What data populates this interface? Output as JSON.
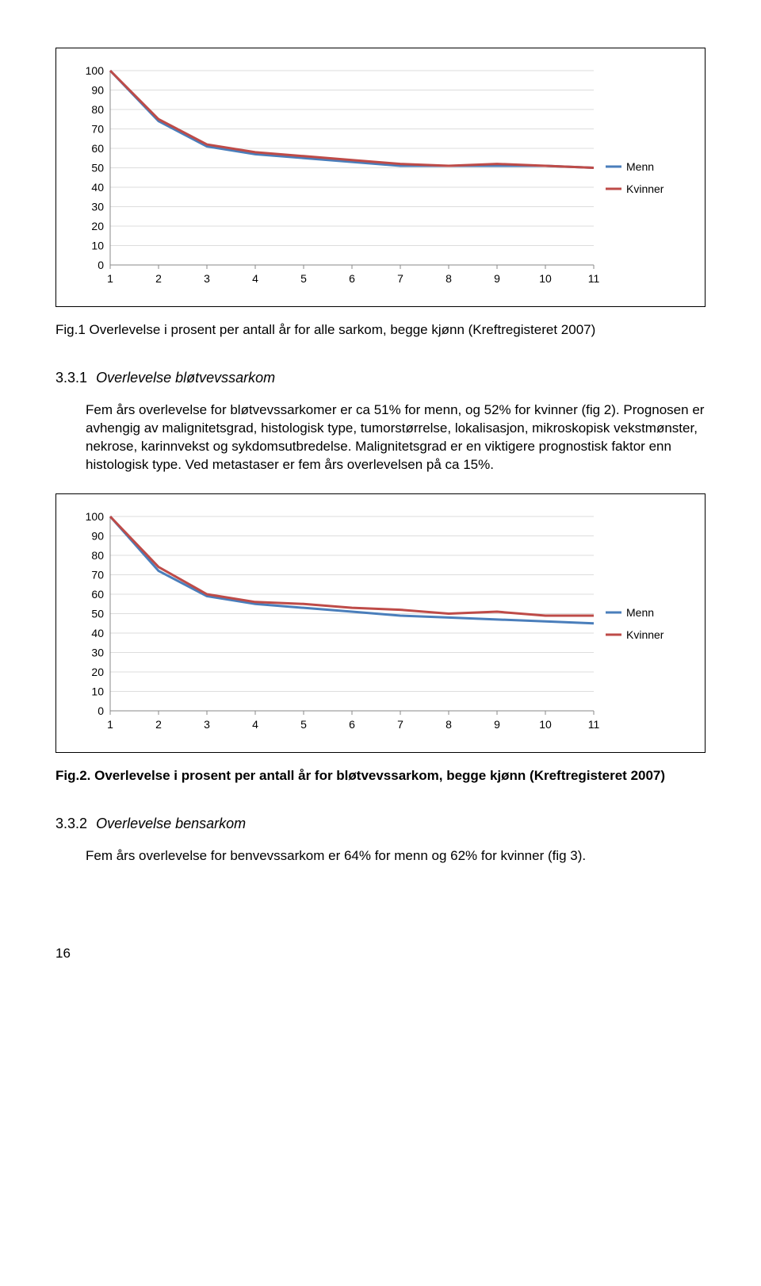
{
  "chart1": {
    "type": "line",
    "x": [
      1,
      2,
      3,
      4,
      5,
      6,
      7,
      8,
      9,
      10,
      11
    ],
    "series": [
      {
        "name": "Menn",
        "color": "#4a7ebb",
        "y": [
          100,
          74,
          61,
          57,
          55,
          53,
          51,
          51,
          51,
          51,
          50
        ]
      },
      {
        "name": "Kvinner",
        "color": "#be4b48",
        "y": [
          100,
          75,
          62,
          58,
          56,
          54,
          52,
          51,
          52,
          51,
          50
        ]
      }
    ],
    "ylim": [
      0,
      100
    ],
    "ystep": 10,
    "line_width": 3,
    "grid_color": "#dddddd",
    "axis_color": "#888888",
    "background": "#ffffff",
    "tick_fontsize": 14,
    "legend_fontsize": 14
  },
  "caption1_prefix": "Fig.1 Overlevelse i prosent per antall år for alle sarkom, begge kjønn (Kreftregisteret 2007)",
  "section331_num": "3.3.1",
  "section331_title": "Overlevelse bløtvevssarkom",
  "para1": "Fem års overlevelse for bløtvevssarkomer er ca 51% for menn, og 52% for kvinner (fig 2). Prognosen er avhengig av malignitetsgrad, histologisk type, tumorstørrelse, lokalisasjon, mikroskopisk vekstmønster, nekrose, karinnvekst og sykdomsutbredelse. Malignitetsgrad er en viktigere prognostisk faktor enn histologisk type. Ved metastaser er fem års overlevelsen på ca 15%.",
  "chart2": {
    "type": "line",
    "x": [
      1,
      2,
      3,
      4,
      5,
      6,
      7,
      8,
      9,
      10,
      11
    ],
    "series": [
      {
        "name": "Menn",
        "color": "#4a7ebb",
        "y": [
          100,
          72,
          59,
          55,
          53,
          51,
          49,
          48,
          47,
          46,
          45
        ]
      },
      {
        "name": "Kvinner",
        "color": "#be4b48",
        "y": [
          100,
          74,
          60,
          56,
          55,
          53,
          52,
          50,
          51,
          49,
          49
        ]
      }
    ],
    "ylim": [
      0,
      100
    ],
    "ystep": 10,
    "line_width": 3,
    "grid_color": "#dddddd",
    "axis_color": "#888888",
    "background": "#ffffff",
    "tick_fontsize": 14,
    "legend_fontsize": 14
  },
  "caption2": "Fig.2. Overlevelse i prosent per antall år for bløtvevssarkom, begge kjønn (Kreftregisteret 2007)",
  "section332_num": "3.3.2",
  "section332_title": "Overlevelse bensarkom",
  "para2": "Fem års overlevelse for benvevssarkom er 64% for menn og 62% for kvinner (fig 3).",
  "page_number": "16"
}
